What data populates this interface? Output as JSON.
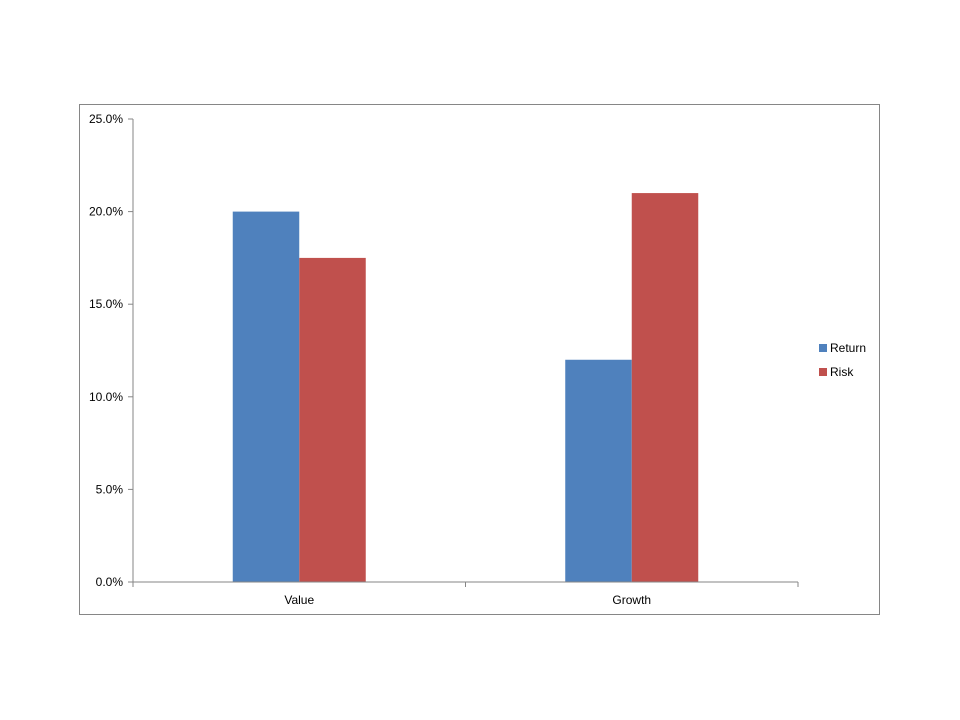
{
  "chart_data": {
    "type": "bar",
    "categories": [
      "Value",
      "Growth"
    ],
    "series": [
      {
        "name": "Return",
        "values": [
          20.0,
          12.0
        ],
        "color": "#4F81BD"
      },
      {
        "name": "Risk",
        "values": [
          17.5,
          21.0
        ],
        "color": "#C0504D"
      }
    ],
    "ylim": [
      0,
      25
    ],
    "yticks": [
      0,
      5,
      10,
      15,
      20,
      25
    ],
    "ytick_labels": [
      "0.0%",
      "5.0%",
      "10.0%",
      "15.0%",
      "20.0%",
      "25.0%"
    ],
    "title": "",
    "xlabel": "",
    "ylabel": "",
    "grid": false,
    "legend_position": "right"
  }
}
